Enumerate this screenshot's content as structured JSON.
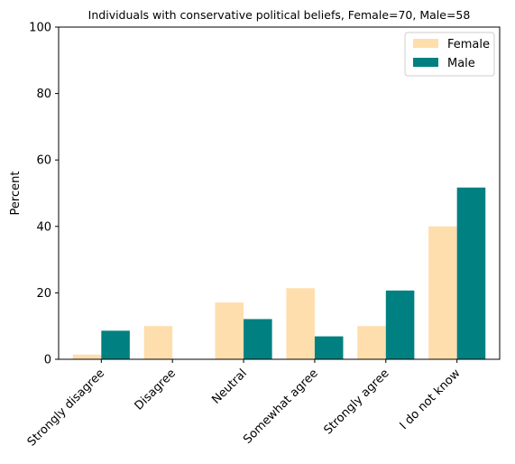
{
  "chart_data": {
    "type": "bar",
    "title": "Individuals with conservative political beliefs, Female=70, Male=58",
    "xlabel": "",
    "ylabel": "Percent",
    "ylim": [
      0,
      100
    ],
    "yticks": [
      0,
      20,
      40,
      60,
      80,
      100
    ],
    "categories": [
      "Strongly disagree",
      "Disagree",
      "Neutral",
      "Somewhat agree",
      "Strongly agree",
      "I do not know"
    ],
    "series": [
      {
        "name": "Female",
        "color": "#ffdead",
        "values": [
          1.4,
          10.0,
          17.1,
          21.4,
          10.0,
          40.0
        ]
      },
      {
        "name": "Male",
        "color": "#008080",
        "values": [
          8.6,
          0.0,
          12.1,
          6.9,
          20.7,
          51.7
        ]
      }
    ],
    "grid": false,
    "legend_position": "top-right"
  }
}
